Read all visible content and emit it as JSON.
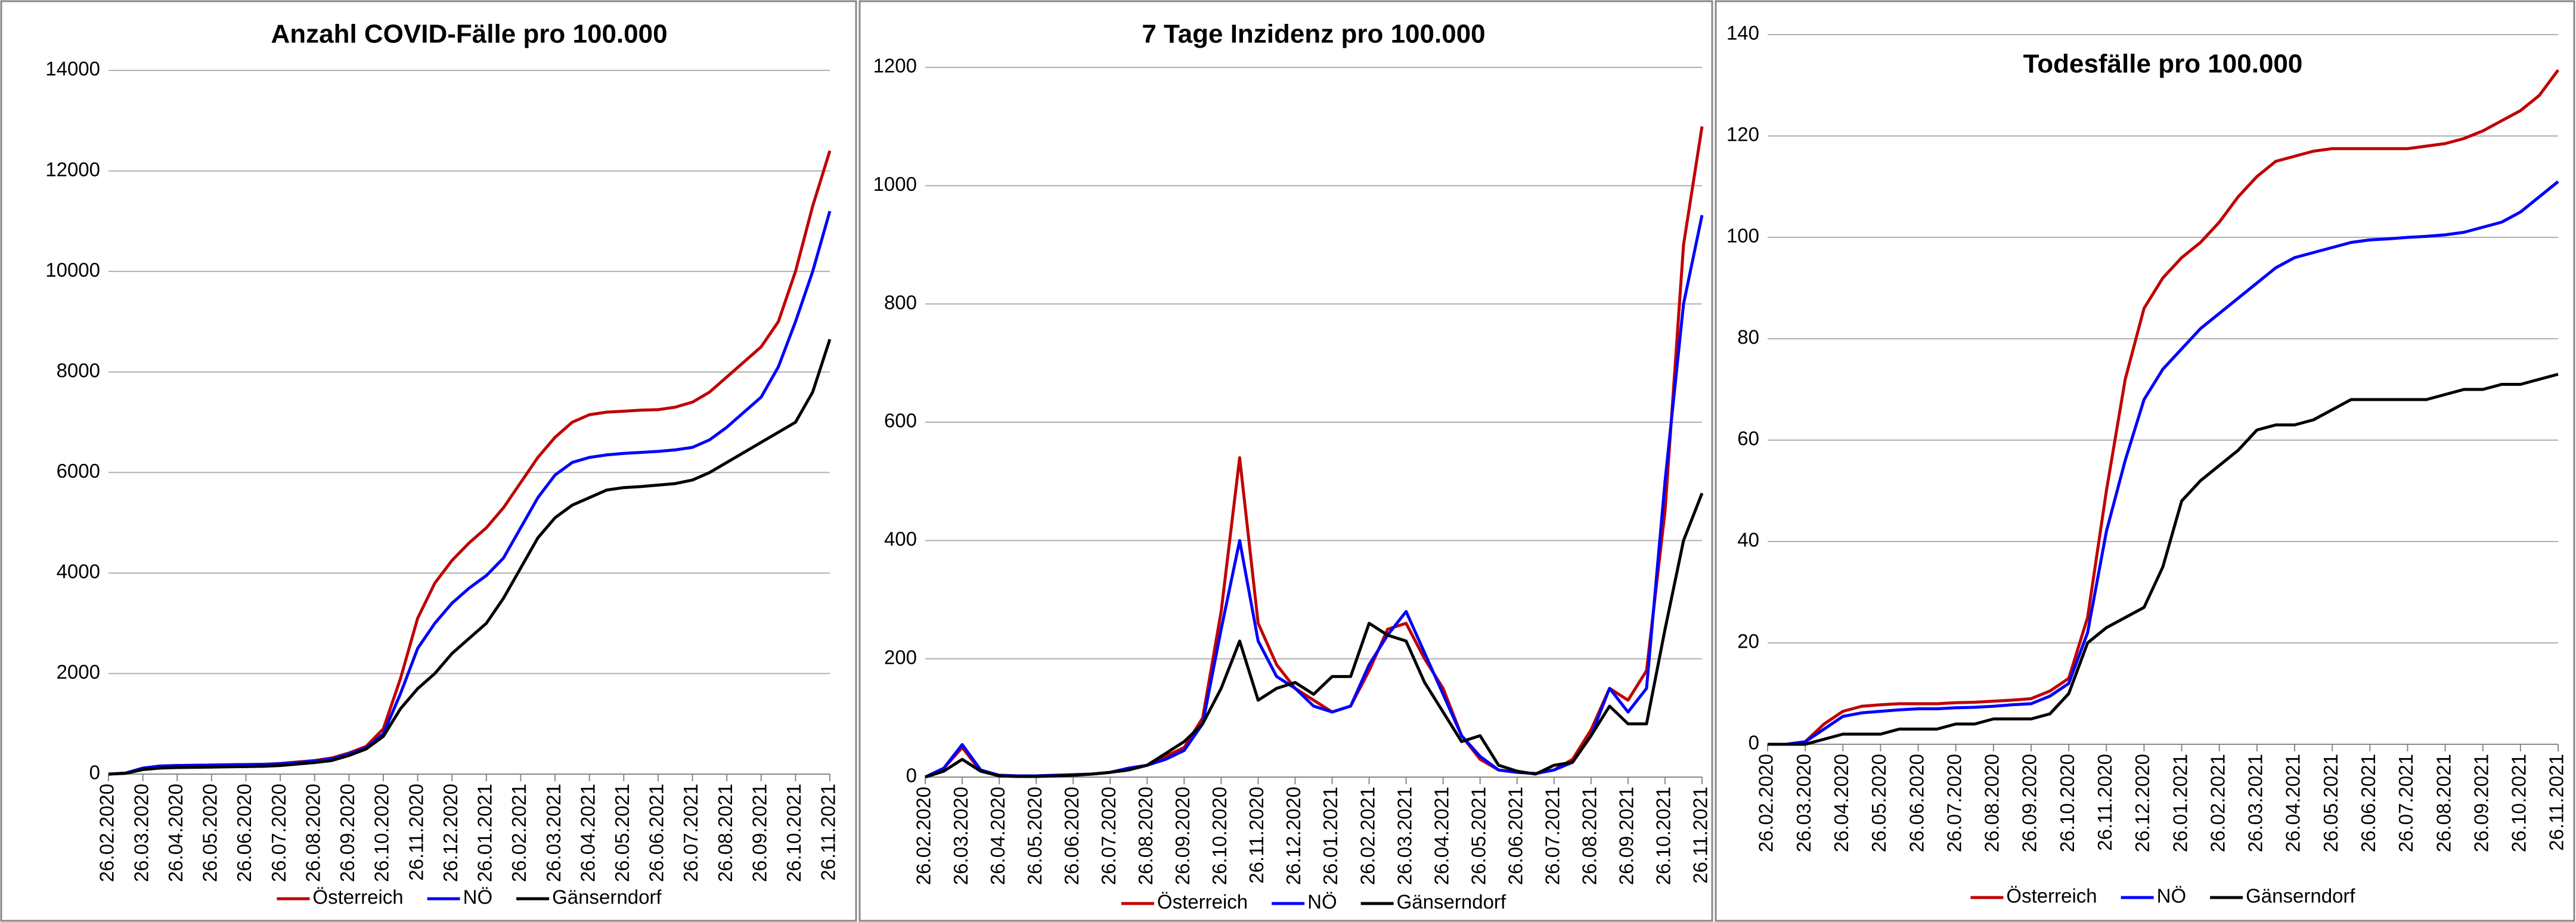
{
  "chart_data": [
    {
      "type": "line",
      "title": "Anzahl COVID-Fälle pro 100.000",
      "categories": [
        "26.02.2020",
        null,
        "26.03.2020",
        null,
        "26.04.2020",
        null,
        "26.05.2020",
        null,
        "26.06.2020",
        null,
        "26.07.2020",
        null,
        "26.08.2020",
        null,
        "26.09.2020",
        null,
        "26.10.2020",
        null,
        "26.11.2020",
        null,
        "26.12.2020",
        null,
        "26.01.2021",
        null,
        "26.02.2021",
        null,
        "26.03.2021",
        null,
        "26.04.2021",
        null,
        "26.05.2021",
        null,
        "26.06.2021",
        null,
        "26.07.2021",
        null,
        "26.08.2021",
        null,
        "26.09.2021",
        null,
        "26.10.2021",
        null,
        "26.11.2021"
      ],
      "series": [
        {
          "name": "Österreich",
          "color": "#c00000",
          "values": [
            0,
            20,
            110,
            160,
            170,
            175,
            180,
            185,
            190,
            195,
            210,
            240,
            270,
            320,
            420,
            550,
            900,
            1900,
            3100,
            3800,
            4250,
            4600,
            4900,
            5300,
            5800,
            6300,
            6700,
            7000,
            7150,
            7200,
            7220,
            7240,
            7250,
            7300,
            7400,
            7600,
            7900,
            8200,
            8500,
            9000,
            10000,
            11300,
            12400
          ]
        },
        {
          "name": "NÖ",
          "color": "#0000ff",
          "values": [
            0,
            20,
            120,
            160,
            170,
            175,
            180,
            185,
            190,
            195,
            205,
            230,
            260,
            300,
            400,
            520,
            800,
            1600,
            2500,
            3000,
            3400,
            3700,
            3950,
            4300,
            4900,
            5500,
            5950,
            6200,
            6300,
            6350,
            6380,
            6400,
            6420,
            6450,
            6500,
            6650,
            6900,
            7200,
            7500,
            8100,
            9000,
            10000,
            11200
          ]
        },
        {
          "name": "Gänserndorf",
          "color": "#000000",
          "values": [
            0,
            15,
            90,
            120,
            130,
            135,
            140,
            145,
            150,
            155,
            170,
            200,
            230,
            270,
            370,
            500,
            750,
            1300,
            1700,
            2000,
            2400,
            2700,
            3000,
            3500,
            4100,
            4700,
            5100,
            5350,
            5500,
            5650,
            5700,
            5720,
            5750,
            5780,
            5850,
            6000,
            6200,
            6400,
            6600,
            6800,
            7000,
            7600,
            8650
          ]
        }
      ],
      "ylim": [
        0,
        14000
      ],
      "yticks": [
        0,
        2000,
        4000,
        6000,
        8000,
        10000,
        12000,
        14000
      ],
      "grid": true,
      "legend": "bottom"
    },
    {
      "type": "line",
      "title": "7 Tage Inzidenz pro 100.000",
      "categories": [
        "26.02.2020",
        null,
        "26.03.2020",
        null,
        "26.04.2020",
        null,
        "26.05.2020",
        null,
        "26.06.2020",
        null,
        "26.07.2020",
        null,
        "26.08.2020",
        null,
        "26.09.2020",
        null,
        "26.10.2020",
        null,
        "26.11.2020",
        null,
        "26.12.2020",
        null,
        "26.01.2021",
        null,
        "26.02.2021",
        null,
        "26.03.2021",
        null,
        "26.04.2021",
        null,
        "26.05.2021",
        null,
        "26.06.2021",
        null,
        "26.07.2021",
        null,
        "26.08.2021",
        null,
        "26.09.2021",
        null,
        "26.10.2021",
        null,
        "26.11.2021"
      ],
      "series": [
        {
          "name": "Österreich",
          "color": "#c00000",
          "values": [
            0,
            15,
            50,
            10,
            3,
            2,
            2,
            3,
            4,
            5,
            8,
            15,
            20,
            35,
            50,
            100,
            280,
            540,
            260,
            190,
            150,
            130,
            110,
            120,
            180,
            250,
            260,
            200,
            150,
            70,
            30,
            12,
            8,
            6,
            12,
            30,
            80,
            150,
            130,
            180,
            450,
            900,
            1100
          ]
        },
        {
          "name": "NÖ",
          "color": "#0000ff",
          "values": [
            0,
            15,
            55,
            12,
            3,
            2,
            2,
            3,
            4,
            5,
            8,
            15,
            20,
            30,
            45,
            90,
            250,
            400,
            230,
            170,
            150,
            120,
            110,
            120,
            190,
            240,
            280,
            210,
            140,
            70,
            35,
            12,
            8,
            6,
            12,
            25,
            70,
            150,
            110,
            150,
            500,
            800,
            950
          ]
        },
        {
          "name": "Gänserndorf",
          "color": "#000000",
          "values": [
            0,
            10,
            30,
            10,
            2,
            1,
            1,
            2,
            3,
            5,
            8,
            12,
            20,
            40,
            60,
            90,
            150,
            230,
            130,
            150,
            160,
            140,
            170,
            170,
            260,
            240,
            230,
            160,
            110,
            60,
            70,
            20,
            10,
            5,
            20,
            25,
            70,
            120,
            90,
            90,
            250,
            400,
            480
          ]
        }
      ],
      "ylim": [
        0,
        1200
      ],
      "yticks": [
        0,
        200,
        400,
        600,
        800,
        1000,
        1200
      ],
      "grid": true,
      "legend": "bottom"
    },
    {
      "type": "line",
      "title": "Todesfälle pro 100.000",
      "categories": [
        "26.02.2020",
        null,
        "26.03.2020",
        null,
        "26.04.2020",
        null,
        "26.05.2020",
        null,
        "26.06.2020",
        null,
        "26.07.2020",
        null,
        "26.08.2020",
        null,
        "26.09.2020",
        null,
        "26.10.2020",
        null,
        "26.11.2020",
        null,
        "26.12.2020",
        null,
        "26.01.2021",
        null,
        "26.02.2021",
        null,
        "26.03.2021",
        null,
        "26.04.2021",
        null,
        "26.05.2021",
        null,
        "26.06.2021",
        null,
        "26.07.2021",
        null,
        "26.08.2021",
        null,
        "26.09.2021",
        null,
        "26.10.2021",
        null,
        "26.11.2021"
      ],
      "series": [
        {
          "name": "Österreich",
          "color": "#c00000",
          "values": [
            0,
            0,
            0.5,
            4,
            6.5,
            7.5,
            7.8,
            8,
            8,
            8,
            8.2,
            8.3,
            8.5,
            8.7,
            9,
            10.5,
            13,
            25,
            50,
            72,
            86,
            92,
            96,
            99,
            103,
            108,
            112,
            115,
            116,
            117,
            117.5,
            117.5,
            117.5,
            117.5,
            117.5,
            118,
            118.5,
            119.5,
            121,
            123,
            125,
            128,
            133
          ]
        },
        {
          "name": "NÖ",
          "color": "#0000ff",
          "values": [
            0,
            0,
            0.5,
            3,
            5.5,
            6.2,
            6.5,
            6.8,
            7,
            7,
            7.2,
            7.3,
            7.5,
            7.8,
            8,
            9.5,
            12,
            22,
            42,
            56,
            68,
            74,
            78,
            82,
            85,
            88,
            91,
            94,
            96,
            97,
            98,
            99,
            99.5,
            99.7,
            100,
            100.2,
            100.5,
            101,
            102,
            103,
            105,
            108,
            111
          ]
        },
        {
          "name": "Gänserndorf",
          "color": "#000000",
          "values": [
            0,
            0,
            0,
            1,
            2,
            2,
            2,
            3,
            3,
            3,
            4,
            4,
            5,
            5,
            5,
            6,
            10,
            20,
            23,
            25,
            27,
            35,
            48,
            52,
            55,
            58,
            62,
            63,
            63,
            64,
            66,
            68,
            68,
            68,
            68,
            68,
            69,
            70,
            70,
            71,
            71,
            72,
            73
          ]
        }
      ],
      "ylim": [
        0,
        140
      ],
      "yticks": [
        0,
        20,
        40,
        60,
        80,
        100,
        120,
        140
      ],
      "grid": true,
      "legend": "bottom"
    }
  ]
}
